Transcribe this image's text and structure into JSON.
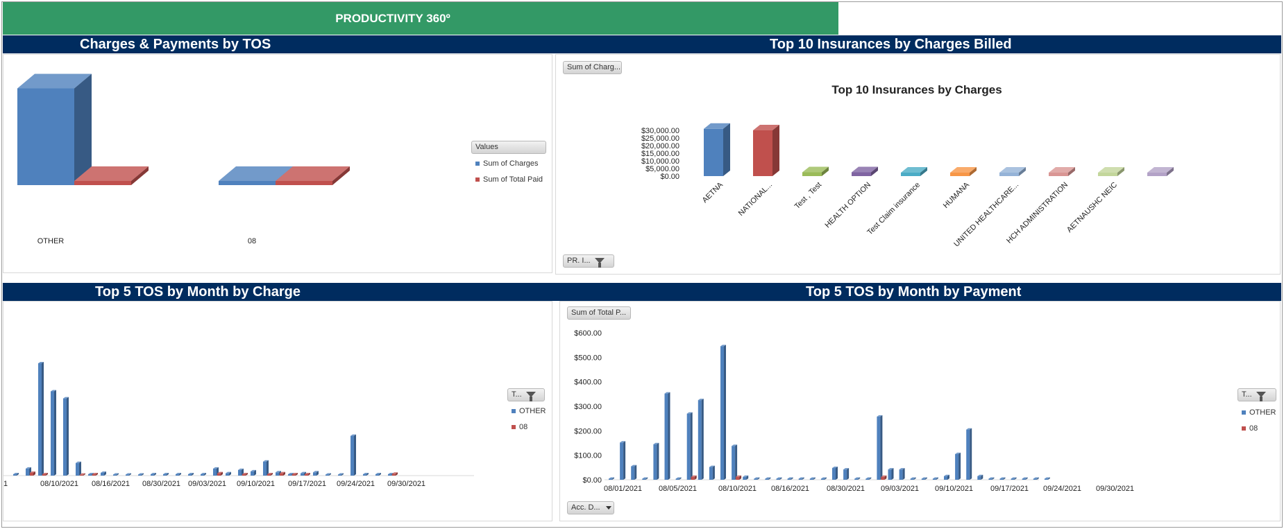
{
  "header": {
    "title": "PRODUCTIVITY 360º"
  },
  "banners": {
    "tl": "Charges & Payments by TOS",
    "tr": "Top 10 Insurances by Charges Billed",
    "bl": "Top 5 TOS by Month by Charge",
    "br": "Top 5 TOS by Month by Payment"
  },
  "colors": {
    "other": "#4f81bd",
    "tos08": "#c0504d",
    "banner": "#002c5f",
    "header": "#339966"
  },
  "controls": {
    "values_header": "Values",
    "sum_charges_btn": "Sum of Charg...",
    "pr_filter_btn": "PR. I...",
    "type_filter_btn": "T...",
    "sum_paid_btn": "Sum of Total P...",
    "acc_date_btn": "Acc. D..."
  },
  "chart_data": [
    {
      "type": "bar",
      "title": "",
      "categories": [
        "OTHER",
        "08"
      ],
      "series": [
        {
          "name": "Sum of Charges",
          "values": [
            27000,
            700
          ]
        },
        {
          "name": "Sum of Total Paid",
          "values": [
            1100,
            0
          ]
        }
      ],
      "ylim": [
        0,
        30000
      ],
      "legend": "right"
    },
    {
      "type": "bar",
      "title": "Top 10 Insurances by Charges",
      "categories": [
        "AETNA",
        "NATIONAL...",
        "Test , Test",
        "HEALTH OPTION",
        "Test Claim insurance",
        "HUMANA",
        "UNITED HEALTHCARE...",
        "HCH ADMINISTRATION",
        "AETNAUSHC NEIC",
        ""
      ],
      "values": [
        31000,
        30000,
        2500,
        2500,
        2000,
        1800,
        900,
        800,
        700,
        600
      ],
      "colors": [
        "#4f81bd",
        "#c0504d",
        "#9bbb59",
        "#8064a2",
        "#4bacc6",
        "#f79646",
        "#95b3d7",
        "#d99694",
        "#c3d69b",
        "#b3a2c7"
      ],
      "yticks": [
        "$30,000.00",
        "$25,000.00",
        "$20,000.00",
        "$15,000.00",
        "$10,000.00",
        "$5,000.00",
        "$0.00"
      ],
      "ylim": [
        0,
        30000
      ]
    },
    {
      "type": "bar",
      "title": "",
      "xtick_labels": [
        "1",
        "08/10/2021",
        "08/16/2021",
        "08/30/2021",
        "09/03/2021",
        "09/10/2021",
        "09/17/2021",
        "09/24/2021",
        "09/30/2021"
      ],
      "series": [
        {
          "name": "OTHER",
          "values": [
            3,
            15,
            240,
            180,
            165,
            27,
            3,
            6,
            0,
            2,
            2,
            3,
            3,
            3,
            3,
            3,
            15,
            5,
            12,
            9,
            30,
            7,
            3,
            5,
            7,
            0,
            0,
            85,
            3,
            3,
            3
          ]
        },
        {
          "name": "08",
          "values": [
            0,
            6,
            3,
            0,
            0,
            2,
            3,
            0,
            0,
            0,
            0,
            0,
            0,
            0,
            0,
            0,
            5,
            0,
            3,
            0,
            3,
            5,
            3,
            3,
            0,
            0,
            0,
            0,
            0,
            0,
            4
          ]
        }
      ],
      "legend": "right"
    },
    {
      "type": "bar",
      "title": "",
      "xtick_labels": [
        "08/01/2021",
        "08/05/2021",
        "08/10/2021",
        "08/16/2021",
        "08/30/2021",
        "09/03/2021",
        "09/10/2021",
        "09/17/2021",
        "09/24/2021",
        "09/30/2021"
      ],
      "yticks": [
        "$600.00",
        "$500.00",
        "$400.00",
        "$300.00",
        "$200.00",
        "$100.00",
        "$0.00"
      ],
      "ylim": [
        0,
        600
      ],
      "series": [
        {
          "name": "OTHER",
          "values": [
            0,
            152,
            55,
            0,
            145,
            352,
            0,
            270,
            325,
            52,
            545,
            138,
            12,
            0,
            0,
            0,
            0,
            0,
            0,
            0,
            48,
            42,
            0,
            0,
            258,
            42,
            42,
            0,
            0,
            0,
            15,
            105,
            205,
            15,
            0,
            0,
            0,
            0,
            0,
            0
          ]
        },
        {
          "name": "08",
          "values": [
            0,
            0,
            0,
            0,
            0,
            0,
            0,
            12,
            0,
            0,
            0,
            12,
            0,
            0,
            0,
            0,
            0,
            0,
            0,
            0,
            0,
            0,
            0,
            0,
            12,
            0,
            0,
            0,
            0,
            0,
            0,
            0,
            0,
            0,
            0,
            0,
            0,
            0,
            0,
            0
          ]
        }
      ],
      "legend": "right"
    }
  ]
}
